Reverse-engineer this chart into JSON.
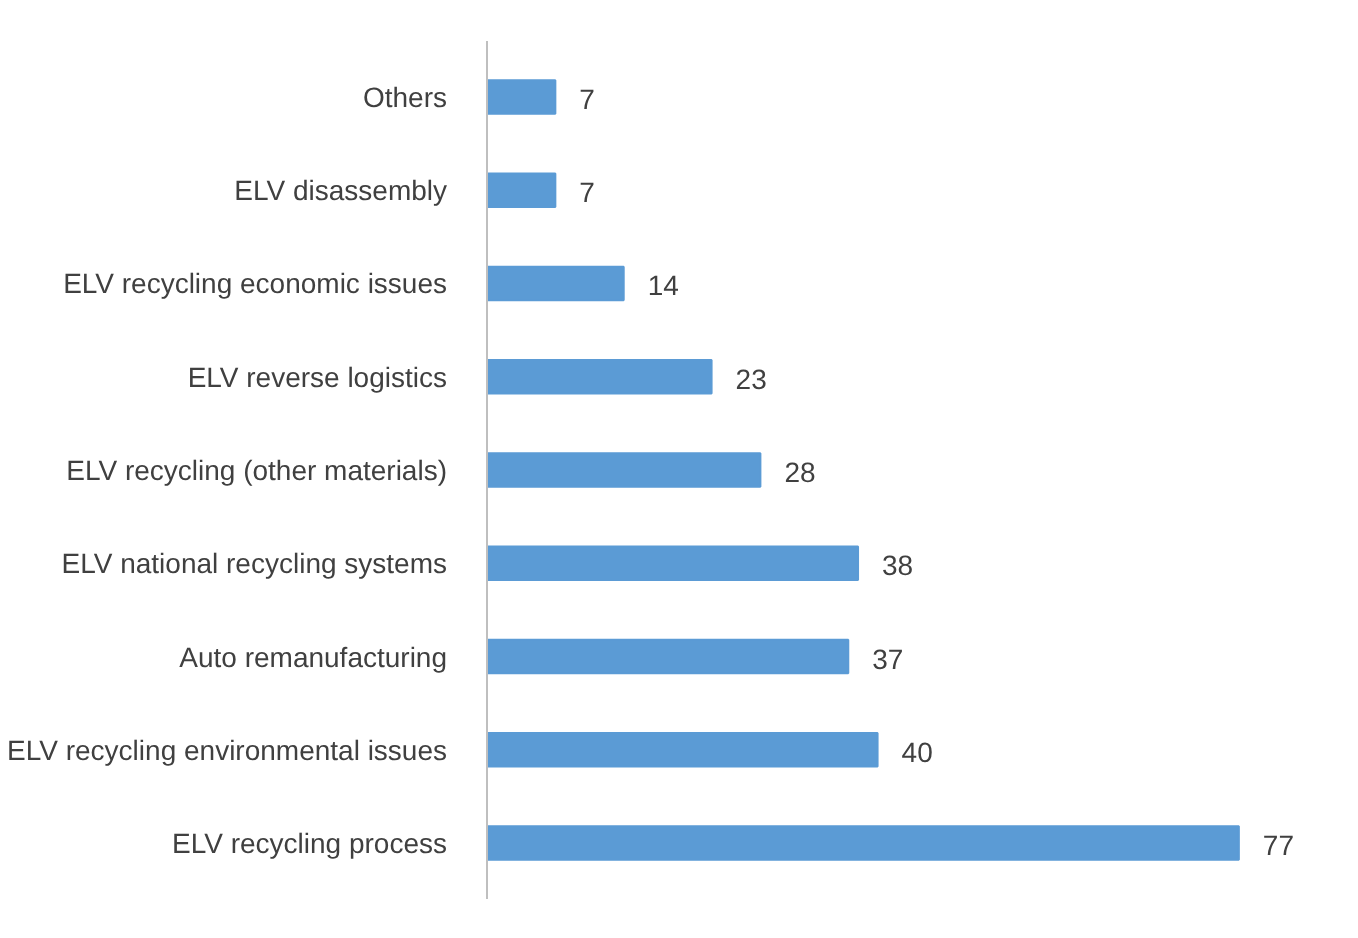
{
  "chart_data": {
    "type": "bar",
    "orientation": "horizontal",
    "data_labels": true,
    "categories": [
      "Others",
      "ELV disassembly",
      "ELV recycling economic issues",
      "ELV reverse logistics",
      "ELV recycling (other materials)",
      "ELV national recycling systems",
      "Auto remanufacturing",
      "ELV recycling environmental issues",
      "ELV recycling process"
    ],
    "values": [
      7,
      7,
      14,
      23,
      28,
      38,
      37,
      40,
      77
    ],
    "color": "#5b9bd5"
  }
}
